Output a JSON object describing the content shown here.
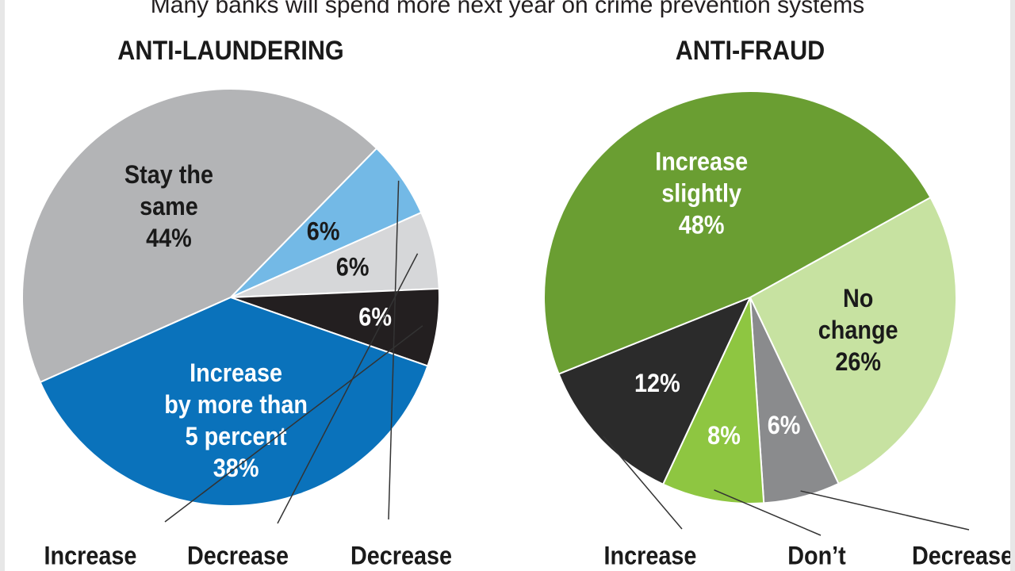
{
  "headline": "Many banks will spend more next year on crime prevention systems",
  "chart_data": [
    {
      "type": "pie",
      "title": "ANTI-LAUNDERING",
      "slices": [
        {
          "lines": [
            "Stay the",
            "same",
            "44%"
          ],
          "value": 44,
          "color": "#b3b4b6",
          "text_color": "#1a1a1a"
        },
        {
          "lines": [
            "6%"
          ],
          "value": 6,
          "color": "#73b9e6",
          "text_color": "#1a1a1a",
          "callout": [
            "Decrease"
          ]
        },
        {
          "lines": [
            "6%"
          ],
          "value": 6,
          "color": "#d6d7d9",
          "text_color": "#1a1a1a",
          "callout": [
            "Decrease"
          ]
        },
        {
          "lines": [
            "6%"
          ],
          "value": 6,
          "color": "#231f20",
          "text_color": "#ffffff",
          "callout": [
            "Increase"
          ]
        },
        {
          "lines": [
            "Increase",
            "by more than",
            "5 percent",
            "38%"
          ],
          "value": 38,
          "color": "#0a72bb",
          "text_color": "#ffffff"
        }
      ]
    },
    {
      "type": "pie",
      "title": "ANTI-FRAUD",
      "slices": [
        {
          "lines": [
            "No",
            "change",
            "26%"
          ],
          "value": 26,
          "color": "#c7e2a1",
          "text_color": "#1a1a1a"
        },
        {
          "lines": [
            "6%"
          ],
          "value": 6,
          "color": "#8a8b8d",
          "text_color": "#ffffff",
          "callout": [
            "Decrease"
          ]
        },
        {
          "lines": [
            "8%"
          ],
          "value": 8,
          "color": "#8ec641",
          "text_color": "#ffffff",
          "callout": [
            "Don’t"
          ]
        },
        {
          "lines": [
            "12%"
          ],
          "value": 12,
          "color": "#2b2b2b",
          "text_color": "#ffffff",
          "callout": [
            "Increase"
          ]
        },
        {
          "lines": [
            "Increase",
            "slightly",
            "48%"
          ],
          "value": 48,
          "color": "#6a9e32",
          "text_color": "#ffffff"
        }
      ]
    }
  ]
}
